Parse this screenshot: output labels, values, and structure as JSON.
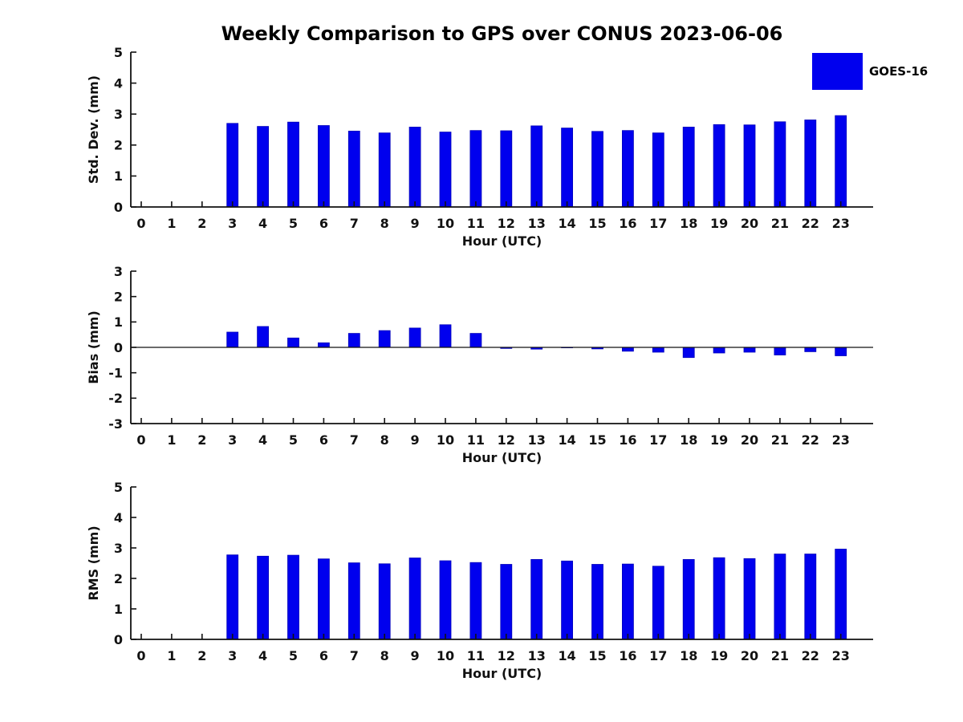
{
  "title": "Weekly Comparison to GPS over CONUS 2023-06-06",
  "legend": {
    "label": "GOES-16",
    "swatch_color": "#0000EE"
  },
  "colors": {
    "bar_fill": "#0000EE",
    "bar_edge": "#0000BB",
    "axis": "#111111",
    "background": "#ffffff"
  },
  "chart_data": [
    {
      "type": "bar",
      "name": "std-dev",
      "ylabel": "Std. Dev. (mm)",
      "xlabel": "Hour (UTC)",
      "ylim": [
        0,
        5
      ],
      "yticks": [
        0,
        1,
        2,
        3,
        4,
        5
      ],
      "grid": false,
      "legend_position": "top-right-outside",
      "categories": [
        0,
        1,
        2,
        3,
        4,
        5,
        6,
        7,
        8,
        9,
        10,
        11,
        12,
        13,
        14,
        15,
        16,
        17,
        18,
        19,
        20,
        21,
        22,
        23
      ],
      "values": [
        null,
        null,
        null,
        2.7,
        2.6,
        2.74,
        2.63,
        2.45,
        2.39,
        2.58,
        2.42,
        2.47,
        2.46,
        2.62,
        2.55,
        2.44,
        2.47,
        2.39,
        2.58,
        2.66,
        2.65,
        2.75,
        2.81,
        2.95
      ]
    },
    {
      "type": "bar",
      "name": "bias",
      "ylabel": "Bias (mm)",
      "xlabel": "Hour (UTC)",
      "ylim": [
        -3,
        3
      ],
      "yticks": [
        -3,
        -2,
        -1,
        0,
        1,
        2,
        3
      ],
      "zero_line": true,
      "grid": false,
      "categories": [
        0,
        1,
        2,
        3,
        4,
        5,
        6,
        7,
        8,
        9,
        10,
        11,
        12,
        13,
        14,
        15,
        16,
        17,
        18,
        19,
        20,
        21,
        22,
        23
      ],
      "values": [
        null,
        null,
        null,
        0.6,
        0.82,
        0.37,
        0.18,
        0.55,
        0.66,
        0.76,
        0.89,
        0.55,
        -0.04,
        -0.07,
        -0.02,
        -0.06,
        -0.15,
        -0.19,
        -0.4,
        -0.22,
        -0.19,
        -0.3,
        -0.17,
        -0.33
      ]
    },
    {
      "type": "bar",
      "name": "rms",
      "ylabel": "RMS (mm)",
      "xlabel": "Hour (UTC)",
      "ylim": [
        0,
        5
      ],
      "yticks": [
        0,
        1,
        2,
        3,
        4,
        5
      ],
      "grid": false,
      "categories": [
        0,
        1,
        2,
        3,
        4,
        5,
        6,
        7,
        8,
        9,
        10,
        11,
        12,
        13,
        14,
        15,
        16,
        17,
        18,
        19,
        20,
        21,
        22,
        23
      ],
      "values": [
        null,
        null,
        null,
        2.77,
        2.73,
        2.76,
        2.64,
        2.51,
        2.48,
        2.67,
        2.58,
        2.52,
        2.46,
        2.62,
        2.57,
        2.46,
        2.47,
        2.4,
        2.62,
        2.68,
        2.65,
        2.8,
        2.8,
        2.96
      ]
    }
  ]
}
